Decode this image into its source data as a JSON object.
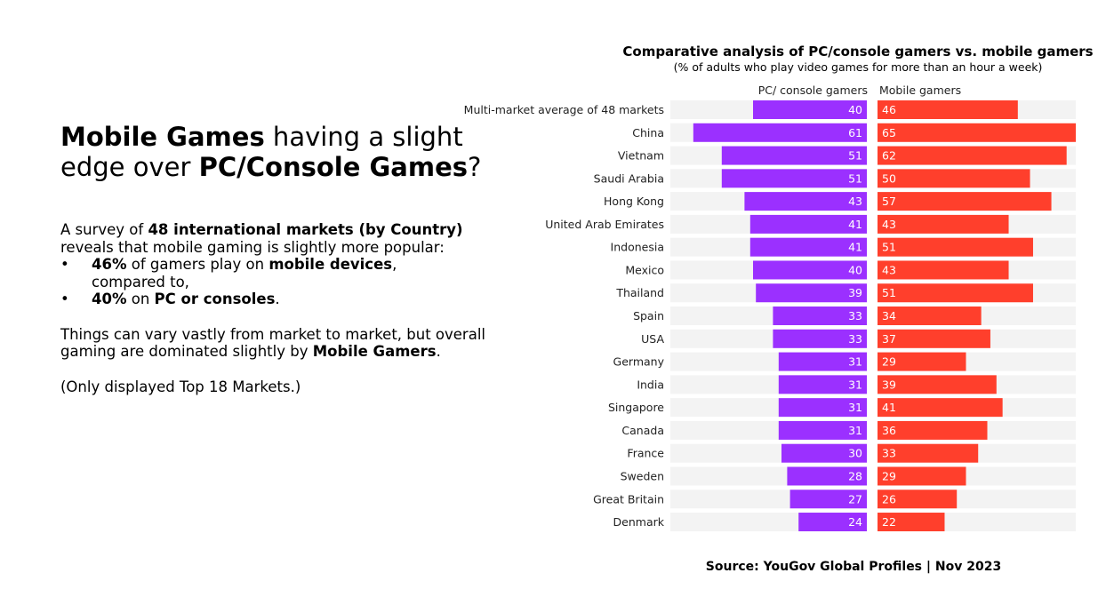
{
  "left": {
    "headline_a": "Mobile Games",
    "headline_b": " having a slight edge over ",
    "headline_c": "PC/Console Games",
    "headline_d": "?",
    "intro_a": "A survey of ",
    "intro_b": "48 international markets (by Country)",
    "intro_c": " reveals that mobile gaming is slightly more popular:",
    "bullet_glyph": "•",
    "bullet1_a": "46%",
    "bullet1_b": " of gamers play on ",
    "bullet1_c": "mobile devices",
    "bullet1_d": ",",
    "bullet1_e": "compared to,",
    "bullet2_a": "40%",
    "bullet2_b": " on ",
    "bullet2_c": "PC or consoles",
    "bullet2_d": ".",
    "things_a": "Things can vary vastly from market to market, but overall gaming are dominated slightly by ",
    "things_b": "Mobile Gamers",
    "things_c": ".",
    "note": "(Only displayed Top 18 Markets.)"
  },
  "source": "Source:  YouGov Global Profiles | Nov 2023",
  "chart_data": {
    "type": "bar",
    "title": "Comparative analysis of PC/console gamers vs. mobile gamers",
    "subtitle": "(% of adults who play video games for more than an hour a week)",
    "categories": [
      "Multi-market average of 48 markets",
      "China",
      "Vietnam",
      "Saudi Arabia",
      "Hong Kong",
      "United Arab Emirates",
      "Indonesia",
      "Mexico",
      "Thailand",
      "Spain",
      "USA",
      "Germany",
      "India",
      "Singapore",
      "Canada",
      "France",
      "Sweden",
      "Great Britain",
      "Denmark"
    ],
    "series": [
      {
        "name": "PC/ console gamers",
        "values": [
          40,
          61,
          51,
          51,
          43,
          41,
          41,
          40,
          39,
          33,
          33,
          31,
          31,
          31,
          31,
          30,
          28,
          27,
          24
        ]
      },
      {
        "name": "Mobile gamers",
        "values": [
          46,
          65,
          62,
          50,
          57,
          43,
          51,
          43,
          51,
          34,
          37,
          29,
          39,
          41,
          36,
          33,
          29,
          26,
          22
        ]
      }
    ],
    "max": 65,
    "colors": {
      "pc": "#9b30ff",
      "mobile": "#ff3f2c",
      "track": "#f3f3f3",
      "value_text": "#ffffff",
      "label_text": "#222222"
    }
  }
}
